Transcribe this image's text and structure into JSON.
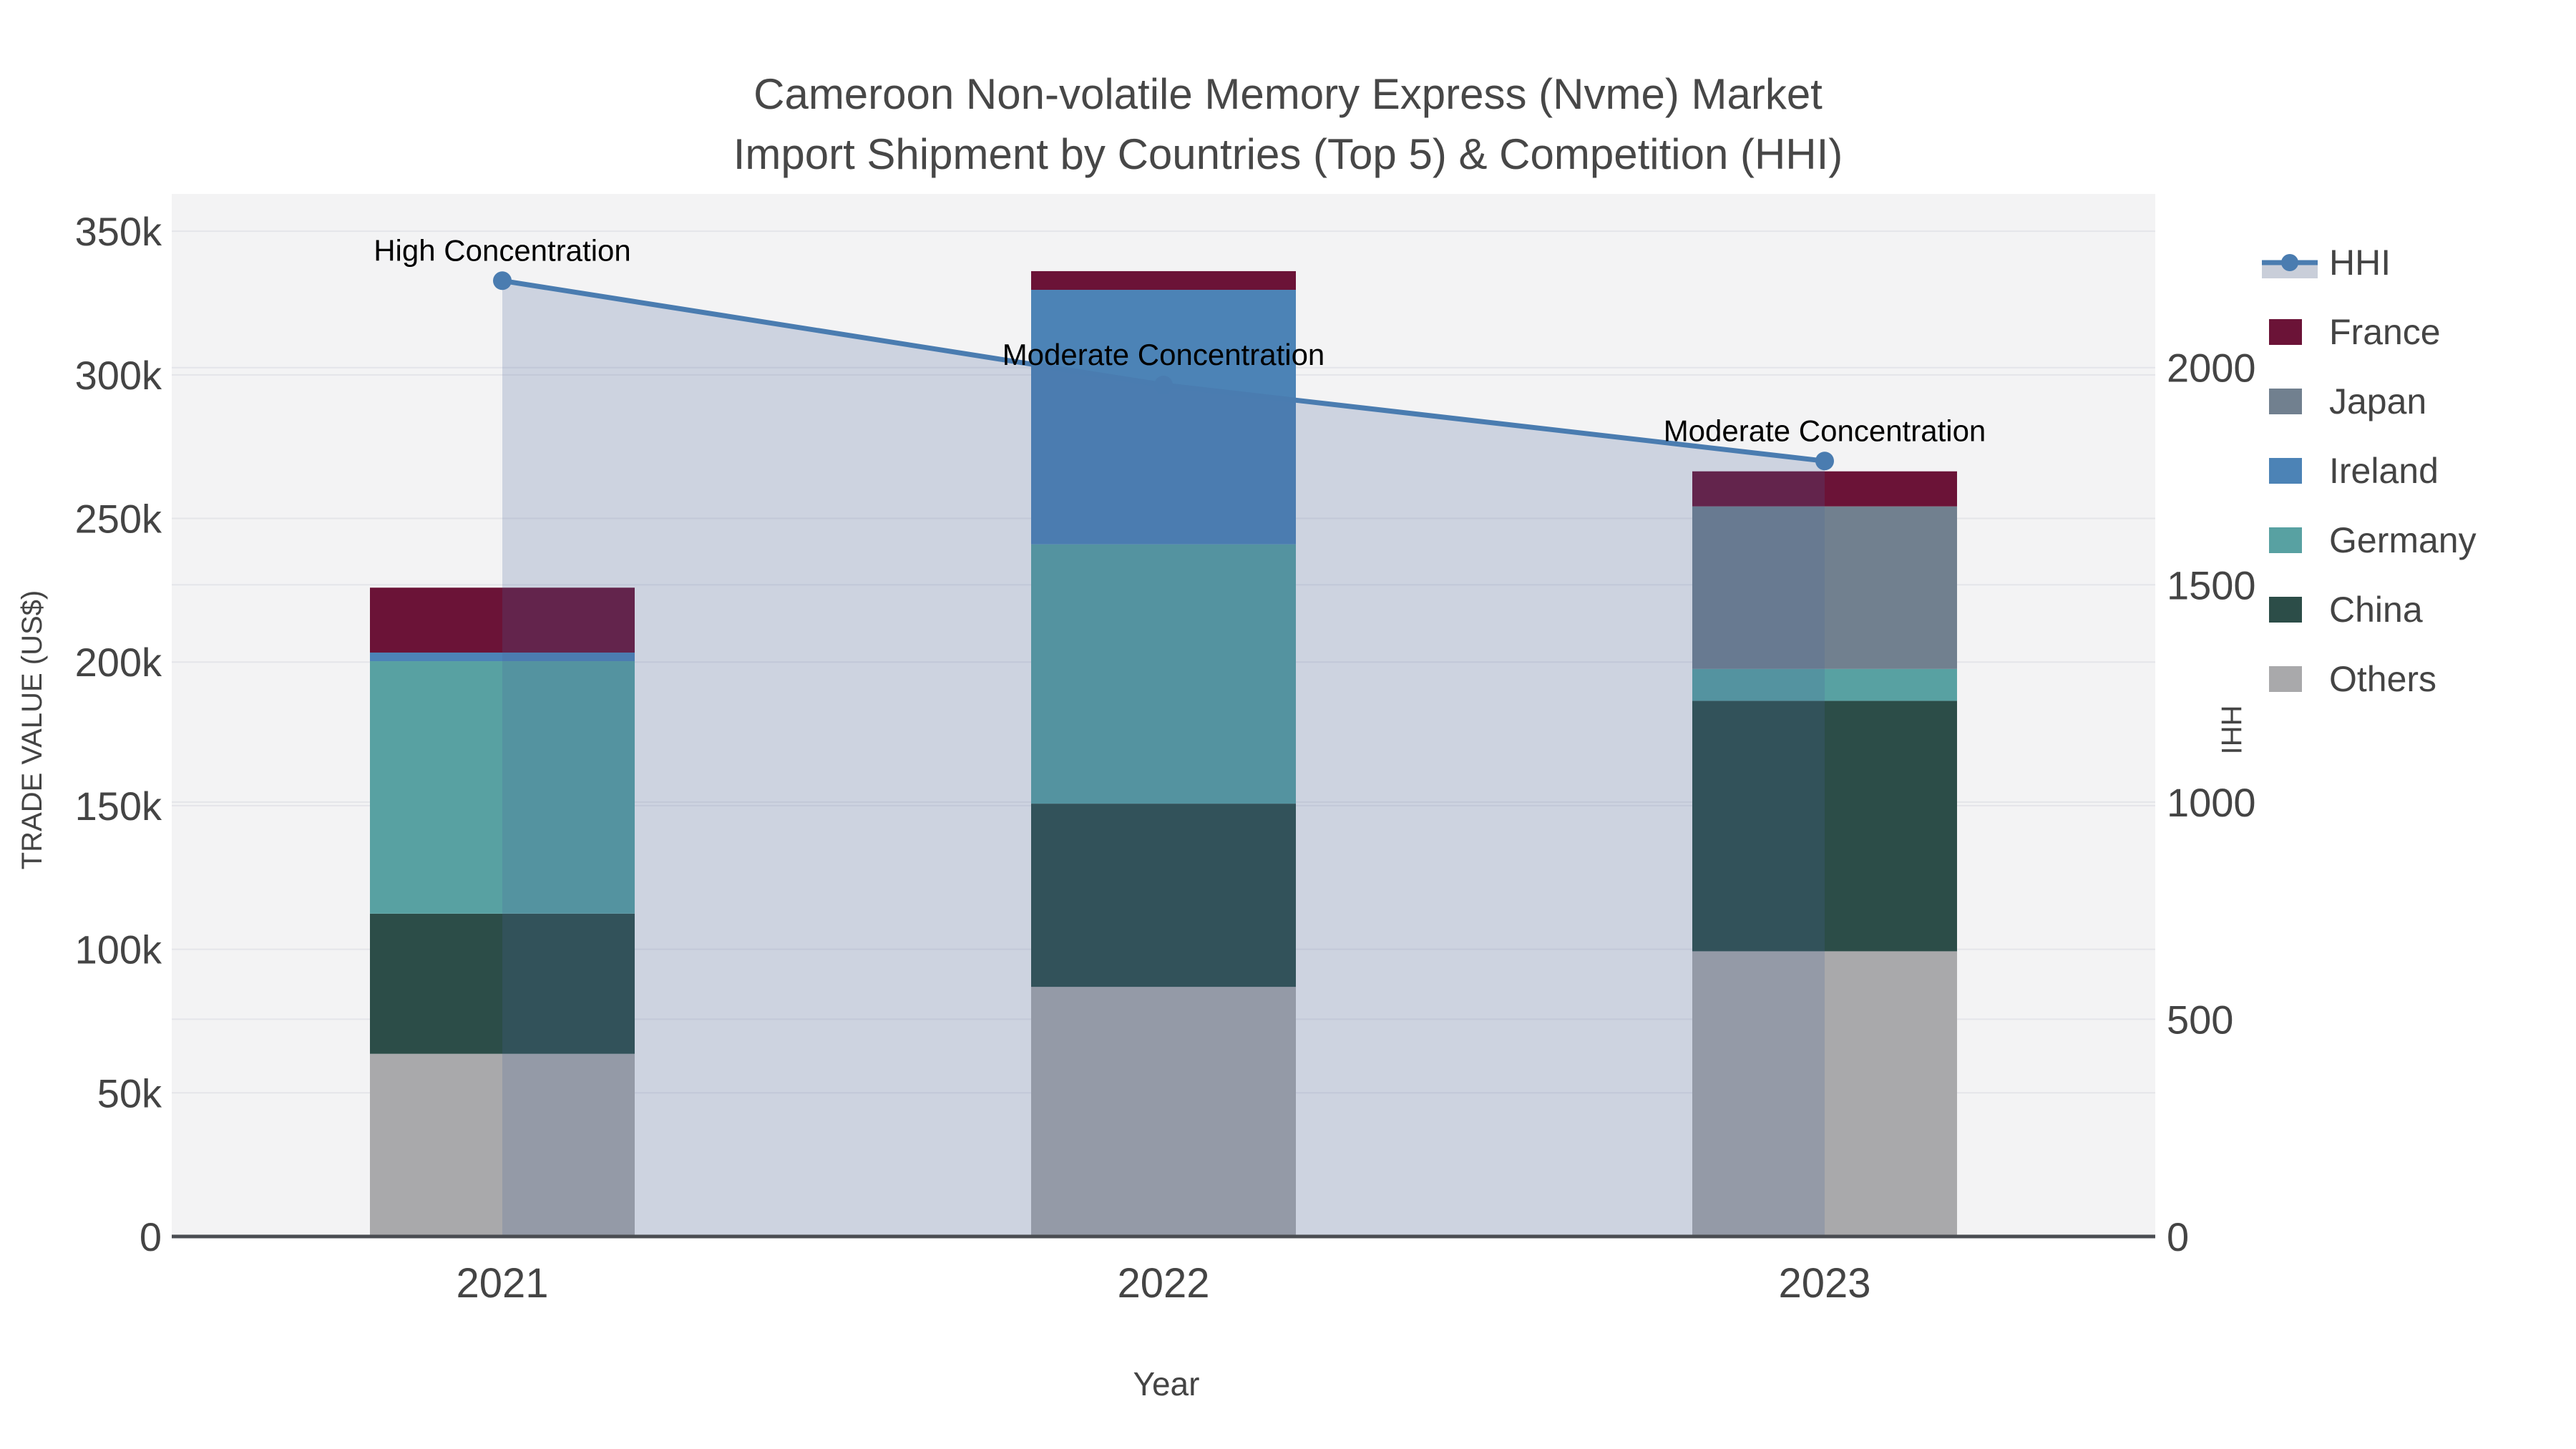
{
  "chart_data": {
    "type": "bar+line",
    "title_line1": "Cameroon Non-volatile Memory Express (Nvme) Market",
    "title_line2": "Import Shipment by Countries (Top 5) & Competition (HHI)",
    "xlabel": "Year",
    "ylabel_left": "TRADE VALUE (US$)",
    "ylabel_right": "HHI",
    "categories": [
      "2021",
      "2022",
      "2023"
    ],
    "series": [
      {
        "name": "France",
        "color": "#6b1337",
        "values": [
          22600,
          6500,
          12200
        ]
      },
      {
        "name": "Japan",
        "color": "#71808f",
        "values": [
          0,
          0,
          56600
        ]
      },
      {
        "name": "Ireland",
        "color": "#4c83b6",
        "values": [
          3000,
          88600,
          0
        ]
      },
      {
        "name": "Germany",
        "color": "#58a1a2",
        "values": [
          87900,
          90300,
          11100
        ]
      },
      {
        "name": "China",
        "color": "#2c4d48",
        "values": [
          48800,
          63800,
          87200
        ]
      },
      {
        "name": "Others",
        "color": "#a9a9ab",
        "values": [
          63600,
          86900,
          99300
        ]
      }
    ],
    "line_series": {
      "name": "HHI",
      "color": "#4a7cb0",
      "fill_color": "rgba(72,100,154,0.22)",
      "values": [
        2200,
        1960,
        1785
      ]
    },
    "annotations": [
      {
        "text": "High Concentration",
        "index": 0
      },
      {
        "text": "Moderate Concentration",
        "index": 1
      },
      {
        "text": "Moderate Concentration",
        "index": 2
      }
    ],
    "left_axis": {
      "max": 360000,
      "ticks": [
        {
          "value": 0,
          "label": "0"
        },
        {
          "value": 50000,
          "label": "50k"
        },
        {
          "value": 100000,
          "label": "100k"
        },
        {
          "value": 150000,
          "label": "150k"
        },
        {
          "value": 200000,
          "label": "200k"
        },
        {
          "value": 250000,
          "label": "250k"
        },
        {
          "value": 300000,
          "label": "300k"
        },
        {
          "value": 350000,
          "label": "350k"
        }
      ]
    },
    "right_axis": {
      "max": 2380,
      "ticks": [
        {
          "value": 0,
          "label": "0"
        },
        {
          "value": 500,
          "label": "500"
        },
        {
          "value": 1000,
          "label": "1000"
        },
        {
          "value": 1500,
          "label": "1500"
        },
        {
          "value": 2000,
          "label": "2000"
        }
      ]
    },
    "legend": [
      "HHI",
      "France",
      "Japan",
      "Ireland",
      "Germany",
      "China",
      "Others"
    ]
  },
  "colors": {
    "plot_bg": "#f3f3f4",
    "grid": "#e4e5e9",
    "axis_line": "#4a4d52",
    "tick_text": "#444444",
    "title_text": "#474747",
    "annotation_text": "#000000"
  }
}
